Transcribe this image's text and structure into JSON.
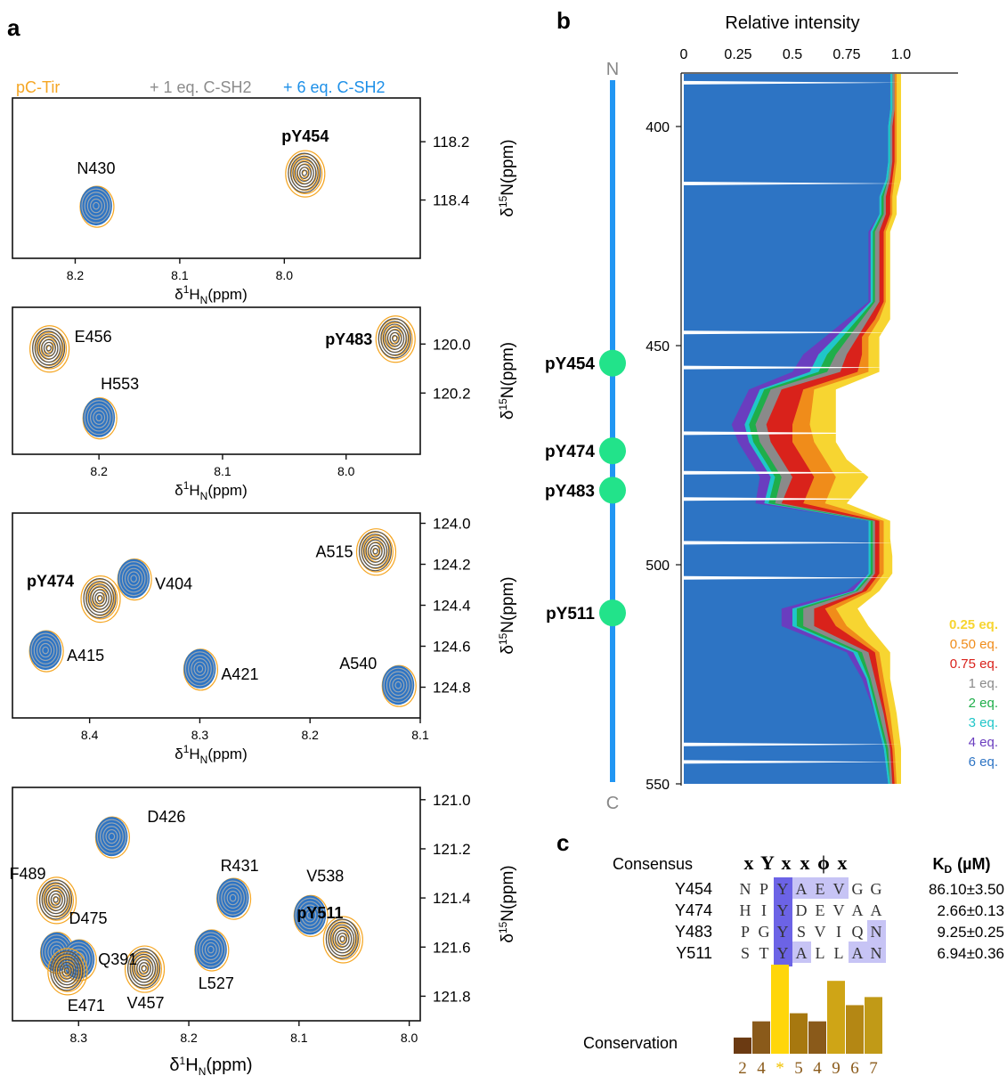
{
  "panel_labels": {
    "a": "a",
    "b": "b",
    "c": "c"
  },
  "legend_a": {
    "items": [
      {
        "text": "pC-Tir",
        "color": "#f5a623"
      },
      {
        "text": "+ 1 eq. C-SH2",
        "color": "#8c8c8c"
      },
      {
        "text": "+ 6 eq. C-SH2",
        "color": "#1e90e8"
      }
    ]
  },
  "colors": {
    "orange": "#f5a623",
    "grey": "#555555",
    "blue": "#2d74c4"
  },
  "axis": {
    "x_unit": "δ",
    "x_sup": "1",
    "x_main": "H",
    "x_sub": "N",
    "x_tail": "(ppm)",
    "y_unit": "δ",
    "y_sup": "15",
    "y_main": "N(ppm)"
  },
  "spectra": [
    {
      "x_range": [
        8.26,
        7.87
      ],
      "y_range": [
        118.05,
        118.6
      ],
      "x_ticks": [
        "8.2",
        "8.1",
        "8.0"
      ],
      "x_tick_values": [
        8.2,
        8.1,
        8.0
      ],
      "y_ticks": [
        "118.2",
        "118.4"
      ],
      "y_tick_values": [
        118.2,
        118.4
      ],
      "peaks": [
        {
          "label": "N430",
          "x": 8.18,
          "y": 118.42,
          "type": "blue",
          "bold": false
        },
        {
          "label": "pY454",
          "x": 7.98,
          "y": 118.31,
          "type": "orange",
          "bold": true
        }
      ]
    },
    {
      "x_range": [
        8.27,
        7.94
      ],
      "y_range": [
        119.85,
        120.45
      ],
      "x_ticks": [
        "8.2",
        "8.1",
        "8.0"
      ],
      "x_tick_values": [
        8.2,
        8.1,
        8.0
      ],
      "y_ticks": [
        "120.0",
        "120.2"
      ],
      "y_tick_values": [
        120.0,
        120.2
      ],
      "peaks": [
        {
          "label": "E456",
          "x": 8.24,
          "y": 120.02,
          "type": "orange",
          "bold": false
        },
        {
          "label": "H553",
          "x": 8.2,
          "y": 120.3,
          "type": "blue",
          "bold": false
        },
        {
          "label": "pY483",
          "x": 7.96,
          "y": 119.98,
          "type": "orange",
          "bold": true
        }
      ]
    },
    {
      "x_range": [
        8.47,
        8.1
      ],
      "y_range": [
        123.95,
        124.95
      ],
      "x_ticks": [
        "8.4",
        "8.3",
        "8.2",
        "8.1"
      ],
      "x_tick_values": [
        8.4,
        8.3,
        8.2,
        8.1
      ],
      "y_ticks": [
        "124.0",
        "124.2",
        "124.4",
        "124.6",
        "124.8"
      ],
      "y_tick_values": [
        124.0,
        124.2,
        124.4,
        124.6,
        124.8
      ],
      "peaks": [
        {
          "label": "pY474",
          "x": 8.39,
          "y": 124.37,
          "type": "orange",
          "bold": true
        },
        {
          "label": "V404",
          "x": 8.36,
          "y": 124.27,
          "type": "blue",
          "bold": false
        },
        {
          "label": "A515",
          "x": 8.14,
          "y": 124.14,
          "type": "orange",
          "bold": false
        },
        {
          "label": "A415",
          "x": 8.44,
          "y": 124.62,
          "type": "blue",
          "bold": false
        },
        {
          "label": "A421",
          "x": 8.3,
          "y": 124.71,
          "type": "blue",
          "bold": false
        },
        {
          "label": "A540",
          "x": 8.12,
          "y": 124.79,
          "type": "blue",
          "bold": false
        }
      ]
    },
    {
      "x_range": [
        8.36,
        7.99
      ],
      "y_range": [
        120.95,
        121.9
      ],
      "x_ticks": [
        "8.3",
        "8.2",
        "8.1",
        "8.0"
      ],
      "x_tick_values": [
        8.3,
        8.2,
        8.1,
        8.0
      ],
      "y_ticks": [
        "121.0",
        "121.2",
        "121.4",
        "121.6",
        "121.8"
      ],
      "y_tick_values": [
        121.0,
        121.2,
        121.4,
        121.6,
        121.8
      ],
      "peaks": [
        {
          "label": "D426",
          "x": 8.27,
          "y": 121.15,
          "type": "blue",
          "bold": false
        },
        {
          "label": "F489",
          "x": 8.32,
          "y": 121.41,
          "type": "orange",
          "bold": false
        },
        {
          "label": "R431",
          "x": 8.16,
          "y": 121.4,
          "type": "blue",
          "bold": false
        },
        {
          "label": "V538",
          "x": 8.09,
          "y": 121.47,
          "type": "blue",
          "bold": false
        },
        {
          "label": "pY511",
          "x": 8.06,
          "y": 121.57,
          "type": "orange",
          "bold": true
        },
        {
          "label": "D475",
          "x": 8.32,
          "y": 121.62,
          "type": "blue",
          "bold": false
        },
        {
          "label": "Q391",
          "x": 8.3,
          "y": 121.65,
          "type": "blue",
          "bold": false
        },
        {
          "label": "E471",
          "x": 8.31,
          "y": 121.7,
          "type": "orange",
          "bold": false
        },
        {
          "label": "V457",
          "x": 8.24,
          "y": 121.69,
          "type": "orange",
          "bold": false
        },
        {
          "label": "L527",
          "x": 8.18,
          "y": 121.61,
          "type": "blue",
          "bold": false
        }
      ]
    }
  ],
  "chart_data": {
    "type": "area",
    "title": "Relative intensity",
    "x_ticks": [
      "0",
      "0.25",
      "0.5",
      "0.75",
      "1.0"
    ],
    "x_tick_values": [
      0,
      0.25,
      0.5,
      0.75,
      1.0
    ],
    "xlim": [
      0,
      1.3
    ],
    "y_ticks": [
      "400",
      "450",
      "500",
      "550"
    ],
    "y_tick_values": [
      400,
      450,
      500,
      550
    ],
    "ylim": [
      388,
      550
    ],
    "sequence_ends": {
      "n": "N",
      "c": "C"
    },
    "sites": [
      {
        "label": "pY454",
        "residue": 454
      },
      {
        "label": "pY474",
        "residue": 474
      },
      {
        "label": "pY483",
        "residue": 483
      },
      {
        "label": "pY511",
        "residue": 511
      }
    ],
    "series": [
      {
        "name": "0.25 eq.",
        "color": "#f7d531",
        "values": [
          1.0,
          1.0,
          1.0,
          1.0,
          1.0,
          1.0,
          1.0,
          0.98,
          0.98,
          0.95,
          0.95,
          0.95,
          0.95,
          0.95,
          0.95,
          0.9,
          0.9,
          0.9,
          0.7,
          0.7,
          0.7,
          0.75,
          0.85,
          0.75,
          0.95,
          0.95,
          0.96,
          0.96,
          0.9,
          0.8,
          0.85,
          0.95,
          0.95,
          0.98,
          1.0,
          1.0
        ]
      },
      {
        "name": "0.50 eq.",
        "color": "#f08c1a",
        "values": [
          0.98,
          0.98,
          0.98,
          0.98,
          0.98,
          0.98,
          0.97,
          0.96,
          0.96,
          0.93,
          0.93,
          0.93,
          0.93,
          0.93,
          0.9,
          0.85,
          0.85,
          0.85,
          0.6,
          0.58,
          0.6,
          0.65,
          0.7,
          0.65,
          0.92,
          0.92,
          0.92,
          0.92,
          0.86,
          0.7,
          0.75,
          0.9,
          0.92,
          0.95,
          0.97,
          0.98
        ]
      },
      {
        "name": "0.75 eq.",
        "color": "#d9221b",
        "values": [
          0.97,
          0.97,
          0.97,
          0.97,
          0.97,
          0.97,
          0.96,
          0.95,
          0.95,
          0.92,
          0.92,
          0.92,
          0.92,
          0.92,
          0.88,
          0.82,
          0.82,
          0.8,
          0.55,
          0.5,
          0.5,
          0.55,
          0.6,
          0.55,
          0.9,
          0.9,
          0.9,
          0.9,
          0.84,
          0.65,
          0.7,
          0.88,
          0.9,
          0.93,
          0.96,
          0.97
        ]
      },
      {
        "name": "1 eq.",
        "color": "#8a8a8a",
        "values": [
          0.97,
          0.97,
          0.97,
          0.96,
          0.96,
          0.96,
          0.95,
          0.93,
          0.93,
          0.9,
          0.9,
          0.9,
          0.9,
          0.9,
          0.85,
          0.8,
          0.75,
          0.72,
          0.45,
          0.38,
          0.4,
          0.45,
          0.5,
          0.45,
          0.88,
          0.88,
          0.88,
          0.88,
          0.82,
          0.6,
          0.6,
          0.85,
          0.88,
          0.92,
          0.95,
          0.96
        ]
      },
      {
        "name": "2 eq.",
        "color": "#1fae4a",
        "values": [
          0.96,
          0.96,
          0.96,
          0.95,
          0.95,
          0.95,
          0.94,
          0.92,
          0.92,
          0.88,
          0.88,
          0.88,
          0.88,
          0.88,
          0.82,
          0.76,
          0.7,
          0.66,
          0.4,
          0.33,
          0.35,
          0.4,
          0.45,
          0.42,
          0.87,
          0.87,
          0.87,
          0.87,
          0.8,
          0.55,
          0.55,
          0.82,
          0.86,
          0.9,
          0.94,
          0.95
        ]
      },
      {
        "name": "3 eq.",
        "color": "#20c6c9",
        "values": [
          0.96,
          0.96,
          0.96,
          0.95,
          0.95,
          0.95,
          0.94,
          0.91,
          0.91,
          0.87,
          0.87,
          0.87,
          0.87,
          0.87,
          0.8,
          0.73,
          0.66,
          0.62,
          0.37,
          0.3,
          0.32,
          0.37,
          0.42,
          0.39,
          0.86,
          0.86,
          0.86,
          0.86,
          0.79,
          0.52,
          0.52,
          0.8,
          0.85,
          0.89,
          0.93,
          0.95
        ]
      },
      {
        "name": "4 eq.",
        "color": "#6a3dbf",
        "values": [
          0.95,
          0.95,
          0.95,
          0.94,
          0.94,
          0.94,
          0.93,
          0.9,
          0.9,
          0.86,
          0.86,
          0.86,
          0.86,
          0.86,
          0.78,
          0.7,
          0.62,
          0.58,
          0.35,
          0.28,
          0.3,
          0.35,
          0.4,
          0.37,
          0.85,
          0.85,
          0.85,
          0.85,
          0.78,
          0.5,
          0.5,
          0.78,
          0.84,
          0.88,
          0.92,
          0.94
        ]
      },
      {
        "name": "6 eq.",
        "color": "#2d74c4",
        "values": [
          0.95,
          0.95,
          0.95,
          0.94,
          0.94,
          0.94,
          0.93,
          0.9,
          0.9,
          0.85,
          0.85,
          0.85,
          0.85,
          0.85,
          0.75,
          0.65,
          0.55,
          0.5,
          0.3,
          0.22,
          0.25,
          0.3,
          0.35,
          0.33,
          0.85,
          0.85,
          0.85,
          0.85,
          0.75,
          0.45,
          0.45,
          0.75,
          0.82,
          0.88,
          0.92,
          0.94
        ]
      }
    ],
    "residues": [
      388,
      392,
      396,
      400,
      404,
      408,
      412,
      416,
      420,
      424,
      428,
      432,
      436,
      440,
      444,
      448,
      452,
      456,
      460,
      468,
      472,
      476,
      480,
      486,
      490,
      494,
      498,
      502,
      506,
      510,
      514,
      520,
      526,
      534,
      542,
      550
    ]
  },
  "consensus": {
    "header_label": "Consensus",
    "header_motif": [
      "x",
      "Y",
      "x",
      "x",
      "ϕ",
      "x"
    ],
    "kd_header_main": "K",
    "kd_header_sub": "D",
    "kd_header_tail": "(µM)",
    "rows": [
      {
        "name": "Y454",
        "seq": [
          "N",
          "P",
          "Y",
          "A",
          "E",
          "V",
          "G",
          "G"
        ],
        "kd": "86.10±3.50"
      },
      {
        "name": "Y474",
        "seq": [
          "H",
          "I",
          "Y",
          "D",
          "E",
          "V",
          "A",
          "A"
        ],
        "kd": "2.66±0.13"
      },
      {
        "name": "Y483",
        "seq": [
          "P",
          "G",
          "Y",
          "S",
          "V",
          "I",
          "Q",
          "N"
        ],
        "kd": "9.25±0.25"
      },
      {
        "name": "Y511",
        "seq": [
          "S",
          "T",
          "Y",
          "A",
          "L",
          "L",
          "A",
          "N"
        ],
        "kd": "6.94±0.36"
      }
    ],
    "conservation_label": "Conservation",
    "conservation_scores": [
      "2",
      "4",
      "*",
      "5",
      "4",
      "9",
      "6",
      "7"
    ],
    "conservation_values": [
      2,
      4,
      11,
      5,
      4,
      9,
      6,
      7
    ]
  }
}
